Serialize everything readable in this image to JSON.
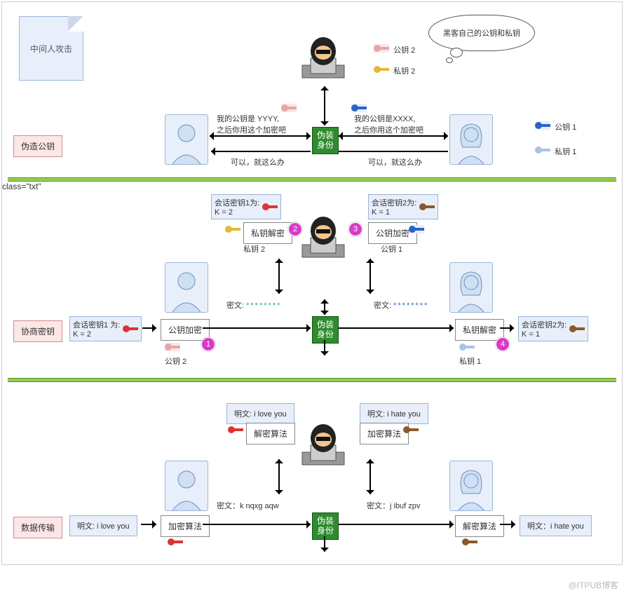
{
  "watermark": "@ITPUB博客",
  "note_title": "中间人攻击",
  "thought": "黑客自己的公钥和私钥",
  "identity_badge": "伪装\n身份",
  "sections": {
    "s1": {
      "label": "伪造公钥"
    },
    "s2": {
      "label": "协商密钥"
    },
    "s3": {
      "label": "数据传输"
    }
  },
  "keys_legend_top": [
    {
      "color": "pink",
      "text": "公钥 2"
    },
    {
      "color": "yellow",
      "text": "私钥 2"
    }
  ],
  "keys_legend_right": [
    {
      "color": "blue",
      "text": "公钥 1"
    },
    {
      "color": "lblue",
      "text": "私钥 1"
    }
  ],
  "s1": {
    "msg_left": "我的公钥是 YYYY,\n之后你用这个加密吧",
    "msg_right": "我的公钥是XXXX,\n之后你用这个加密吧",
    "reply": "可以，就这么办",
    "top_key_label": ""
  },
  "s2": {
    "left_session": "会话密钥1 为:\nK = 2",
    "right_session": "会话密钥2为:\nK = 1",
    "top_left_session": "会话密钥1为:\nK = 2",
    "top_right_session": "会话密钥2为:\nK = 1",
    "pub_enc": "公钥加密",
    "priv_dec": "私钥解密",
    "cipher_label": "密文:",
    "cipher_text": "********",
    "key2": "公钥 2",
    "key1": "私钥 1",
    "privkey2": "私钥 2",
    "pubkey1": "公钥 1"
  },
  "s3": {
    "plain_left": "明文: i love you",
    "plain_right": "明文：i hate you",
    "plain_top_left": "明文: i love you",
    "plain_top_right": "明文: i hate you",
    "enc_algo": "加密算法",
    "dec_algo": "解密算法",
    "cipher_left": "密文：k nqxg aqw",
    "cipher_right": "密文：j ibuf zpv"
  },
  "colors": {
    "green": "#2e8b2e",
    "pink_bg": "#fce6e6",
    "blue_bg": "#e8effa",
    "sep": "#92d050"
  }
}
